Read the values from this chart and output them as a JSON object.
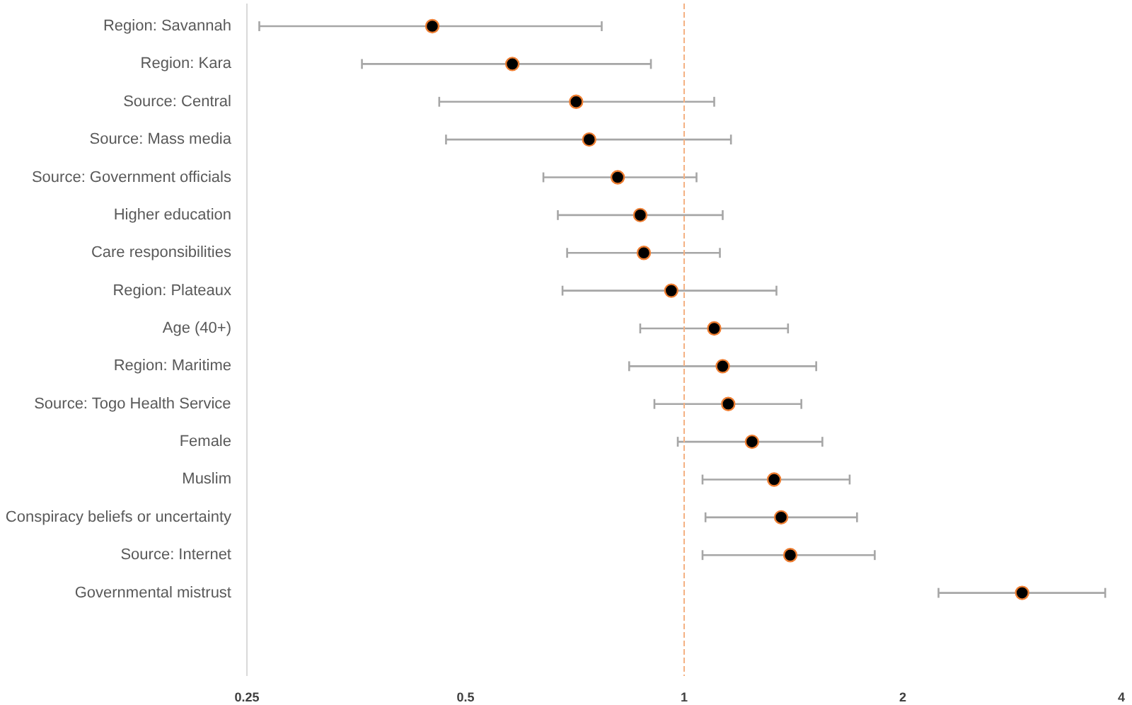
{
  "chart_data": {
    "type": "scatter",
    "orientation": "horizontal",
    "log": "x",
    "categories": [
      "Region: Savannah",
      "Region: Kara",
      "Source: Central",
      "Source: Mass media",
      "Source: Government officials",
      "Higher education",
      "Care responsibilities",
      "Region: Plateaux",
      "Age (40+)",
      "Region: Maritime",
      "Source: Togo Health Service",
      "Female",
      "Muslim",
      "Conspiracy beliefs or uncertainty",
      "Source: Internet",
      "Governmental mistrust"
    ],
    "values": [
      0.45,
      0.58,
      0.71,
      0.74,
      0.81,
      0.87,
      0.88,
      0.96,
      1.1,
      1.13,
      1.15,
      1.24,
      1.33,
      1.36,
      1.4,
      2.92
    ],
    "errors": [
      [
        0.26,
        0.77
      ],
      [
        0.36,
        0.9
      ],
      [
        0.46,
        1.1
      ],
      [
        0.47,
        1.16
      ],
      [
        0.64,
        1.04
      ],
      [
        0.67,
        1.13
      ],
      [
        0.69,
        1.12
      ],
      [
        0.68,
        1.34
      ],
      [
        0.87,
        1.39
      ],
      [
        0.84,
        1.52
      ],
      [
        0.91,
        1.45
      ],
      [
        0.98,
        1.55
      ],
      [
        1.06,
        1.69
      ],
      [
        1.07,
        1.73
      ],
      [
        1.06,
        1.83
      ],
      [
        2.24,
        3.8
      ]
    ],
    "color": "#000000",
    "marker": "circle",
    "xlim": [
      0.25,
      4
    ],
    "xticks": [
      0.25,
      0.5,
      1,
      2,
      4
    ],
    "grid": false,
    "ref_lines": [
      {
        "axis": "x",
        "value": 1,
        "color": "#f4b183",
        "line_style": "dashed"
      }
    ]
  }
}
